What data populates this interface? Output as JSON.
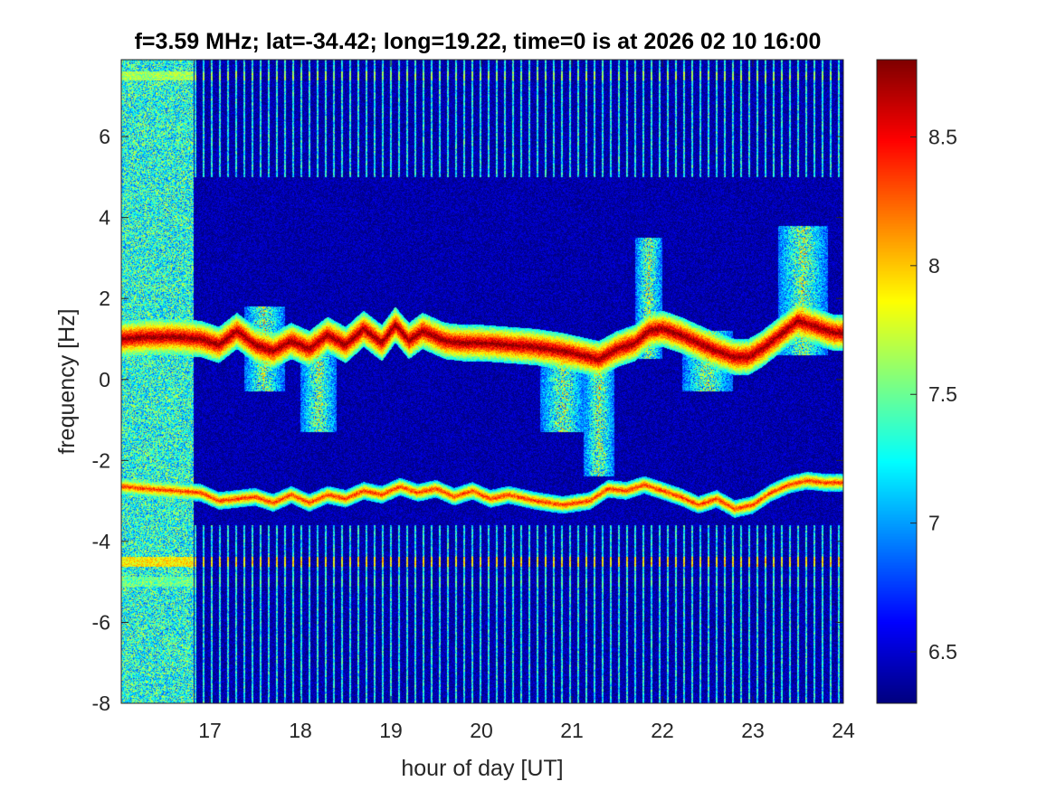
{
  "chart_data": {
    "type": "heatmap",
    "title": "f=3.59 MHz;  lat=-34.42; long=19.22, time=0 is at 2026 02 10 16:00",
    "xlabel": "hour of day [UT]",
    "ylabel": "frequency [Hz]",
    "xlim": [
      16.02,
      24.0
    ],
    "ylim": [
      -8,
      7.9
    ],
    "x_ticks": [
      17,
      18,
      19,
      20,
      21,
      22,
      23,
      24
    ],
    "y_ticks": [
      -8,
      -6,
      -4,
      -2,
      0,
      2,
      4,
      6
    ],
    "colorbar": {
      "colormap": "jet",
      "clim": [
        6.3,
        8.8
      ],
      "ticks": [
        6.5,
        7,
        7.5,
        8,
        8.5
      ]
    },
    "background_level": 6.4,
    "noisy_segment": {
      "x_start": 16.02,
      "x_end": 16.82,
      "level": 7.3
    },
    "upper_trace": [
      [
        16.05,
        1.0
      ],
      [
        16.3,
        1.05
      ],
      [
        16.6,
        1.05
      ],
      [
        16.9,
        1.0
      ],
      [
        17.1,
        0.85
      ],
      [
        17.3,
        1.2
      ],
      [
        17.5,
        0.85
      ],
      [
        17.7,
        0.7
      ],
      [
        17.9,
        0.95
      ],
      [
        18.1,
        0.75
      ],
      [
        18.3,
        1.1
      ],
      [
        18.5,
        0.85
      ],
      [
        18.7,
        1.25
      ],
      [
        18.9,
        0.9
      ],
      [
        19.05,
        1.35
      ],
      [
        19.2,
        0.95
      ],
      [
        19.35,
        1.2
      ],
      [
        19.6,
        0.95
      ],
      [
        19.8,
        0.9
      ],
      [
        20.0,
        0.9
      ],
      [
        20.3,
        0.85
      ],
      [
        20.6,
        0.8
      ],
      [
        20.9,
        0.7
      ],
      [
        21.1,
        0.6
      ],
      [
        21.3,
        0.5
      ],
      [
        21.5,
        0.75
      ],
      [
        21.7,
        0.9
      ],
      [
        21.85,
        1.2
      ],
      [
        22.0,
        1.25
      ],
      [
        22.2,
        1.1
      ],
      [
        22.4,
        0.9
      ],
      [
        22.6,
        0.7
      ],
      [
        22.8,
        0.55
      ],
      [
        22.95,
        0.55
      ],
      [
        23.1,
        0.75
      ],
      [
        23.3,
        1.1
      ],
      [
        23.5,
        1.45
      ],
      [
        23.7,
        1.3
      ],
      [
        23.9,
        1.15
      ],
      [
        24.0,
        1.15
      ]
    ],
    "lower_trace": [
      [
        16.05,
        -2.65
      ],
      [
        16.3,
        -2.7
      ],
      [
        16.6,
        -2.75
      ],
      [
        16.9,
        -2.8
      ],
      [
        17.1,
        -3.0
      ],
      [
        17.3,
        -2.95
      ],
      [
        17.5,
        -2.9
      ],
      [
        17.7,
        -3.05
      ],
      [
        17.9,
        -2.85
      ],
      [
        18.1,
        -3.05
      ],
      [
        18.3,
        -2.85
      ],
      [
        18.5,
        -2.95
      ],
      [
        18.7,
        -2.75
      ],
      [
        18.9,
        -2.85
      ],
      [
        19.1,
        -2.65
      ],
      [
        19.3,
        -2.8
      ],
      [
        19.5,
        -2.7
      ],
      [
        19.7,
        -2.9
      ],
      [
        19.9,
        -2.75
      ],
      [
        20.1,
        -2.95
      ],
      [
        20.3,
        -2.85
      ],
      [
        20.6,
        -3.0
      ],
      [
        20.9,
        -3.1
      ],
      [
        21.2,
        -3.0
      ],
      [
        21.4,
        -2.7
      ],
      [
        21.6,
        -2.75
      ],
      [
        21.8,
        -2.6
      ],
      [
        22.0,
        -2.75
      ],
      [
        22.2,
        -2.9
      ],
      [
        22.4,
        -3.1
      ],
      [
        22.6,
        -2.95
      ],
      [
        22.8,
        -3.2
      ],
      [
        23.0,
        -3.1
      ],
      [
        23.2,
        -2.8
      ],
      [
        23.4,
        -2.6
      ],
      [
        23.6,
        -2.5
      ],
      [
        23.8,
        -2.55
      ],
      [
        24.0,
        -2.55
      ]
    ],
    "spread_regions": [
      {
        "x_center": 17.6,
        "x_width": 0.45,
        "y_low": -0.3,
        "y_high": 1.8
      },
      {
        "x_center": 18.2,
        "x_width": 0.4,
        "y_low": -1.3,
        "y_high": 1.0
      },
      {
        "x_center": 20.9,
        "x_width": 0.5,
        "y_low": -1.3,
        "y_high": 0.8
      },
      {
        "x_center": 21.3,
        "x_width": 0.35,
        "y_low": -2.4,
        "y_high": 0.6
      },
      {
        "x_center": 21.85,
        "x_width": 0.3,
        "y_low": 0.5,
        "y_high": 3.5
      },
      {
        "x_center": 22.5,
        "x_width": 0.55,
        "y_low": -0.3,
        "y_high": 1.2
      },
      {
        "x_center": 23.55,
        "x_width": 0.55,
        "y_low": 0.6,
        "y_high": 3.8
      }
    ],
    "horizontal_bands": [
      {
        "y": 7.5,
        "level": 7.6
      },
      {
        "y": -4.5,
        "level": 7.9
      },
      {
        "y": -5.0,
        "level": 7.4
      }
    ]
  }
}
